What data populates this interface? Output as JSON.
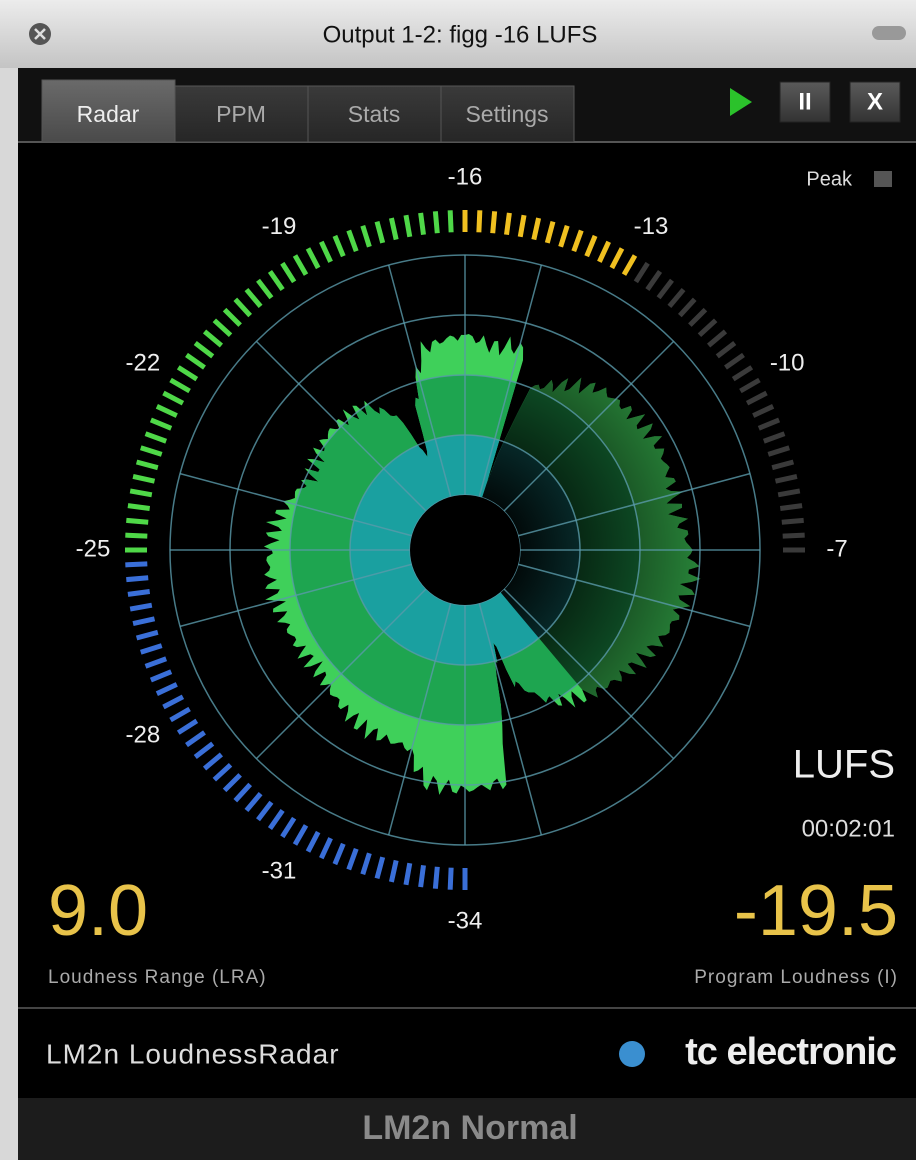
{
  "window": {
    "title": "Output 1-2: figg -16 LUFS"
  },
  "tabs": [
    "Radar",
    "PPM",
    "Stats",
    "Settings"
  ],
  "buttons": {
    "pause": "II",
    "close": "X"
  },
  "peak_label": "Peak",
  "radar": {
    "scale_labels": [
      "-34",
      "-31",
      "-28",
      "-25",
      "-22",
      "-19",
      "-16",
      "-13",
      "-10",
      "-7"
    ]
  },
  "readout": {
    "unit": "LUFS",
    "time": "00:02:01",
    "lra_value": "9.0",
    "lra_label": "Loudness Range (LRA)",
    "program_value": "-19.5",
    "program_label": "Program Loudness (I)"
  },
  "footer": {
    "product": "LM2n LoudnessRadar",
    "brand": "tc electronic",
    "preset": "LM2n Normal"
  }
}
